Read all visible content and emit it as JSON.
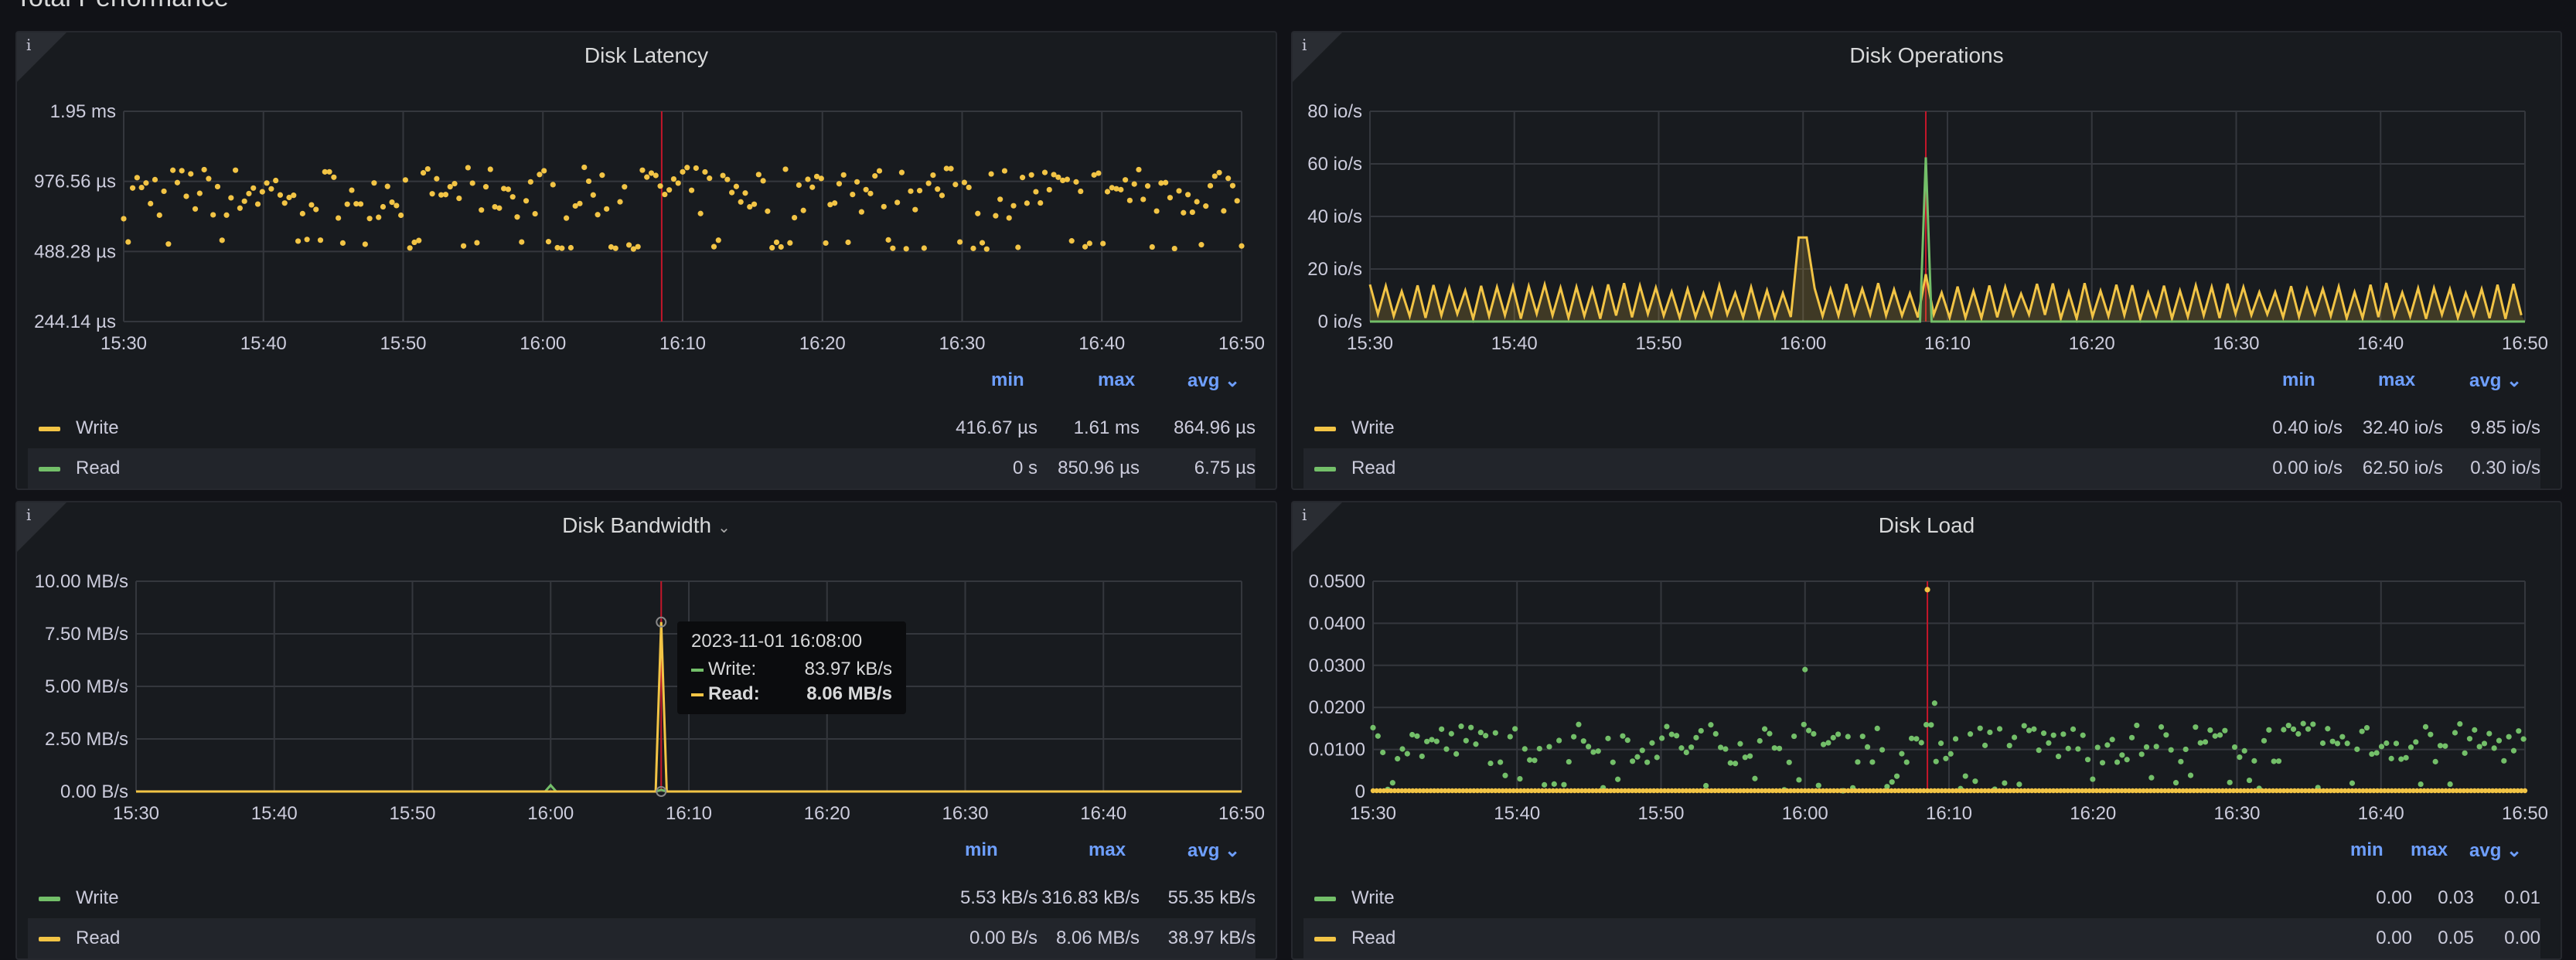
{
  "section_title": "Total Performance",
  "colors": {
    "write_yellow": "#f2c445",
    "read_green": "#73bf69",
    "marker_red": "#c4162a",
    "grid": "#2f3237"
  },
  "panels": [
    {
      "id": "latency",
      "title": "Disk Latency",
      "info_icon": "i",
      "legend_headers": {
        "min": "min",
        "max": "max",
        "avg": "avg"
      },
      "legend": [
        {
          "name": "Write",
          "color": "#f2c445",
          "min": "416.67 µs",
          "max": "1.61 ms",
          "avg": "864.96 µs"
        },
        {
          "name": "Read",
          "color": "#73bf69",
          "min": "0 s",
          "max": "850.96 µs",
          "avg": "6.75 µs"
        }
      ]
    },
    {
      "id": "operations",
      "title": "Disk Operations",
      "info_icon": "i",
      "legend_headers": {
        "min": "min",
        "max": "max",
        "avg": "avg"
      },
      "legend": [
        {
          "name": "Write",
          "color": "#f2c445",
          "min": "0.40 io/s",
          "max": "32.40 io/s",
          "avg": "9.85 io/s"
        },
        {
          "name": "Read",
          "color": "#73bf69",
          "min": "0.00 io/s",
          "max": "62.50 io/s",
          "avg": "0.30 io/s"
        }
      ]
    },
    {
      "id": "bandwidth",
      "title": "Disk Bandwidth",
      "info_icon": "i",
      "legend_headers": {
        "min": "min",
        "max": "max",
        "avg": "avg"
      },
      "legend": [
        {
          "name": "Write",
          "color": "#73bf69",
          "min": "5.53 kB/s",
          "max": "316.83 kB/s",
          "avg": "55.35 kB/s"
        },
        {
          "name": "Read",
          "color": "#f2c445",
          "min": "0.00 B/s",
          "max": "8.06 MB/s",
          "avg": "38.97 kB/s"
        }
      ],
      "tooltip": {
        "time": "2023-11-01 16:08:00",
        "rows": [
          {
            "name": "Write:",
            "value": "83.97 kB/s",
            "color": "#73bf69"
          },
          {
            "name": "Read:",
            "value": "8.06 MB/s",
            "color": "#f2c445"
          }
        ]
      }
    },
    {
      "id": "load",
      "title": "Disk Load",
      "info_icon": "i",
      "legend_headers": {
        "min": "min",
        "max": "max",
        "avg": "avg"
      },
      "legend": [
        {
          "name": "Write",
          "color": "#73bf69",
          "min": "0.00",
          "max": "0.03",
          "avg": "0.01"
        },
        {
          "name": "Read",
          "color": "#f2c445",
          "min": "0.00",
          "max": "0.05",
          "avg": "0.00"
        }
      ]
    }
  ],
  "chart_data": [
    {
      "id": "latency",
      "type": "scatter",
      "x_ticks": [
        "15:30",
        "15:40",
        "15:50",
        "16:00",
        "16:10",
        "16:20",
        "16:30",
        "16:40",
        "16:50"
      ],
      "y_ticks": [
        "1.95 ms",
        "976.56 µs",
        "488.28 µs",
        "244.14 µs"
      ],
      "y_scale": "log2",
      "xlim_minutes": [
        0,
        80
      ],
      "marker_minute": 38.5,
      "series": [
        {
          "name": "Write",
          "color": "#f2c445",
          "pattern": "scatter_log",
          "center": 0.9,
          "spread": 0.45
        },
        {
          "name": "Read",
          "color": "#73bf69",
          "pattern": "zero"
        }
      ]
    },
    {
      "id": "operations",
      "type": "area",
      "x_ticks": [
        "15:30",
        "15:40",
        "15:50",
        "16:00",
        "16:10",
        "16:20",
        "16:30",
        "16:40",
        "16:50"
      ],
      "y_ticks": [
        "80 io/s",
        "60 io/s",
        "40 io/s",
        "20 io/s",
        "0 io/s"
      ],
      "ylim": [
        0,
        80
      ],
      "xlim_minutes": [
        0,
        80
      ],
      "marker_minute": 38.5,
      "series": [
        {
          "name": "Write",
          "color": "#f2c445",
          "pattern": "oscillate",
          "low": 1,
          "high": 14,
          "spikes": [
            {
              "minute": 30,
              "value": 32
            },
            {
              "minute": 38.5,
              "value": 18
            }
          ]
        },
        {
          "name": "Read",
          "color": "#73bf69",
          "pattern": "spike",
          "spikes": [
            {
              "minute": 38.5,
              "value": 62.5
            }
          ]
        }
      ]
    },
    {
      "id": "bandwidth",
      "type": "line",
      "x_ticks": [
        "15:30",
        "15:40",
        "15:50",
        "16:00",
        "16:10",
        "16:20",
        "16:30",
        "16:40",
        "16:50"
      ],
      "y_ticks": [
        "10.00 MB/s",
        "7.50 MB/s",
        "5.00 MB/s",
        "2.50 MB/s",
        "0.00 B/s"
      ],
      "ylim": [
        0,
        10
      ],
      "xlim_minutes": [
        0,
        80
      ],
      "marker_minute": 38,
      "series": [
        {
          "name": "Write",
          "color": "#73bf69",
          "pattern": "spike",
          "spikes": [
            {
              "minute": 30,
              "value": 0.3
            },
            {
              "minute": 38,
              "value": 0.08
            }
          ]
        },
        {
          "name": "Read",
          "color": "#f2c445",
          "pattern": "spike",
          "spikes": [
            {
              "minute": 38,
              "value": 8.06
            }
          ]
        }
      ]
    },
    {
      "id": "load",
      "type": "scatter",
      "x_ticks": [
        "15:30",
        "15:40",
        "15:50",
        "16:00",
        "16:10",
        "16:20",
        "16:30",
        "16:40",
        "16:50"
      ],
      "y_ticks": [
        "0.0500",
        "0.0400",
        "0.0300",
        "0.0200",
        "0.0100",
        "0"
      ],
      "ylim": [
        0,
        0.05
      ],
      "xlim_minutes": [
        0,
        80
      ],
      "marker_minute": 38.5,
      "series": [
        {
          "name": "Write",
          "color": "#73bf69",
          "pattern": "scatter_lin",
          "center": 0.01,
          "spread": 0.006,
          "outliers": [
            {
              "minute": 30,
              "value": 0.029
            },
            {
              "minute": 39,
              "value": 0.021
            }
          ]
        },
        {
          "name": "Read",
          "color": "#f2c445",
          "pattern": "floor",
          "outliers": [
            {
              "minute": 38.5,
              "value": 0.048
            }
          ]
        }
      ]
    }
  ]
}
